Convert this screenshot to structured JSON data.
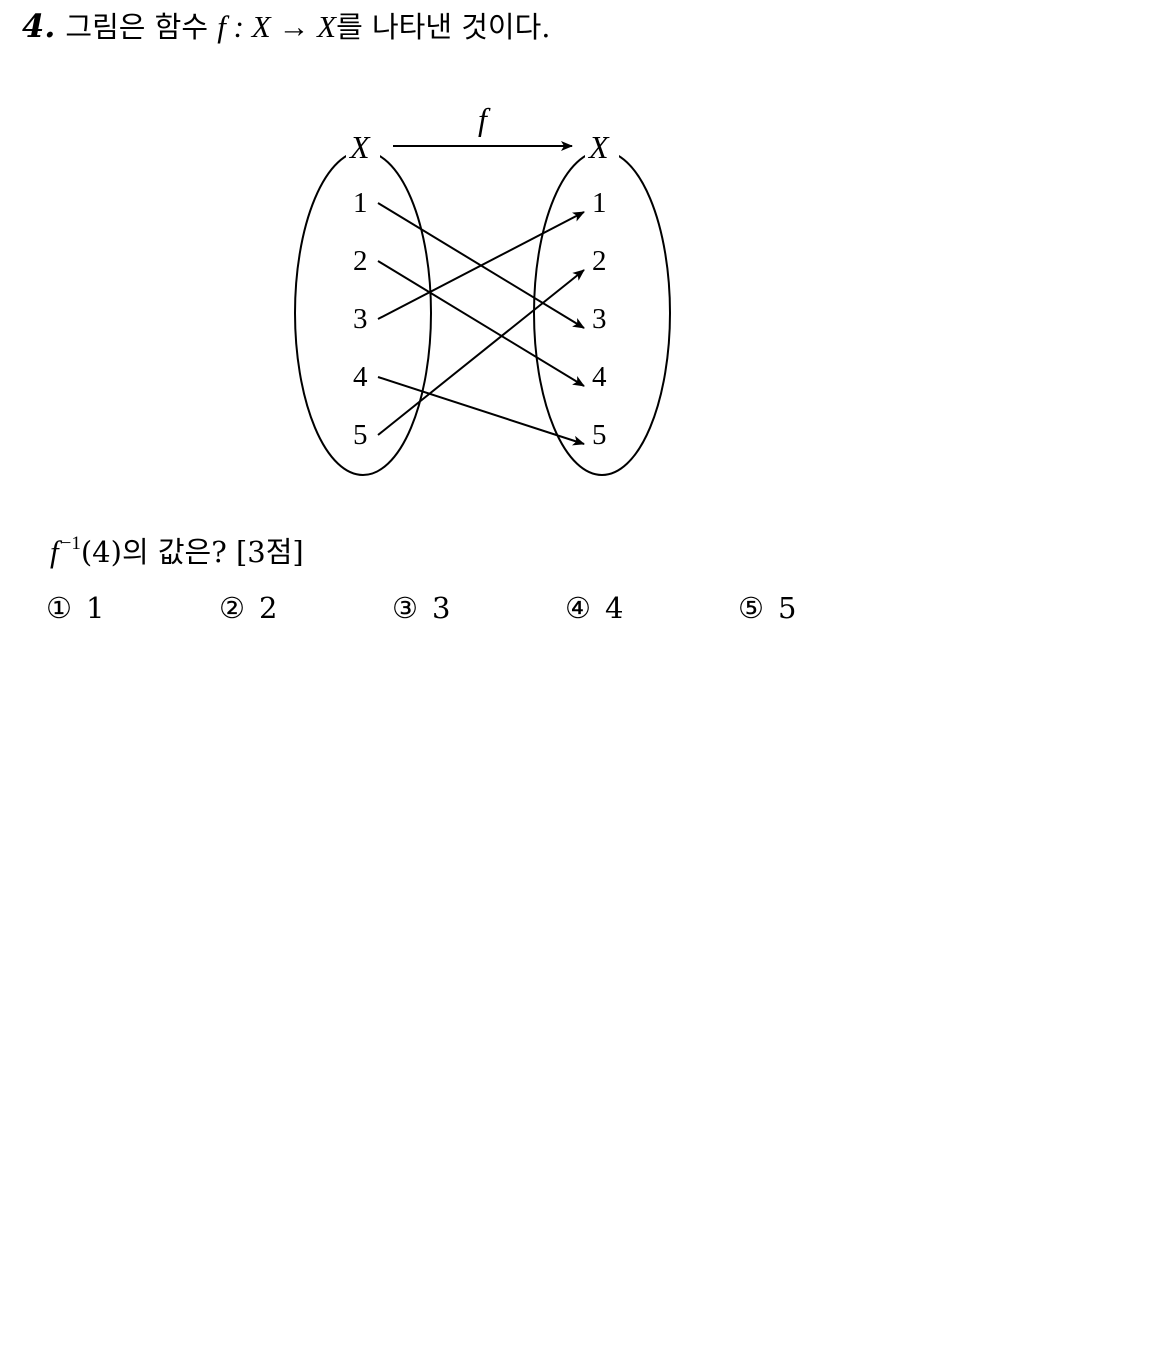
{
  "question": {
    "number": "4.",
    "text_before": "그림은 함수",
    "func_symbol": "f",
    "mapping": " : X → X",
    "text_after": "를 나타낸 것이다."
  },
  "diagram": {
    "func_label": "f",
    "domain_label": "X",
    "codomain_label": "X",
    "domain_elements": [
      "1",
      "2",
      "3",
      "4",
      "5"
    ],
    "codomain_elements": [
      "1",
      "2",
      "3",
      "4",
      "5"
    ],
    "mappings": [
      {
        "from": "1",
        "to": "3"
      },
      {
        "from": "2",
        "to": "4"
      },
      {
        "from": "3",
        "to": "1"
      },
      {
        "from": "4",
        "to": "5"
      },
      {
        "from": "5",
        "to": "2"
      }
    ]
  },
  "prompt": {
    "func": "f",
    "exponent": "−1",
    "argument": "(4)",
    "text": "의 값은? [3점]"
  },
  "choices": [
    {
      "mark": "①",
      "value": "1"
    },
    {
      "mark": "②",
      "value": "2"
    },
    {
      "mark": "③",
      "value": "3"
    },
    {
      "mark": "④",
      "value": "4"
    },
    {
      "mark": "⑤",
      "value": "5"
    }
  ]
}
